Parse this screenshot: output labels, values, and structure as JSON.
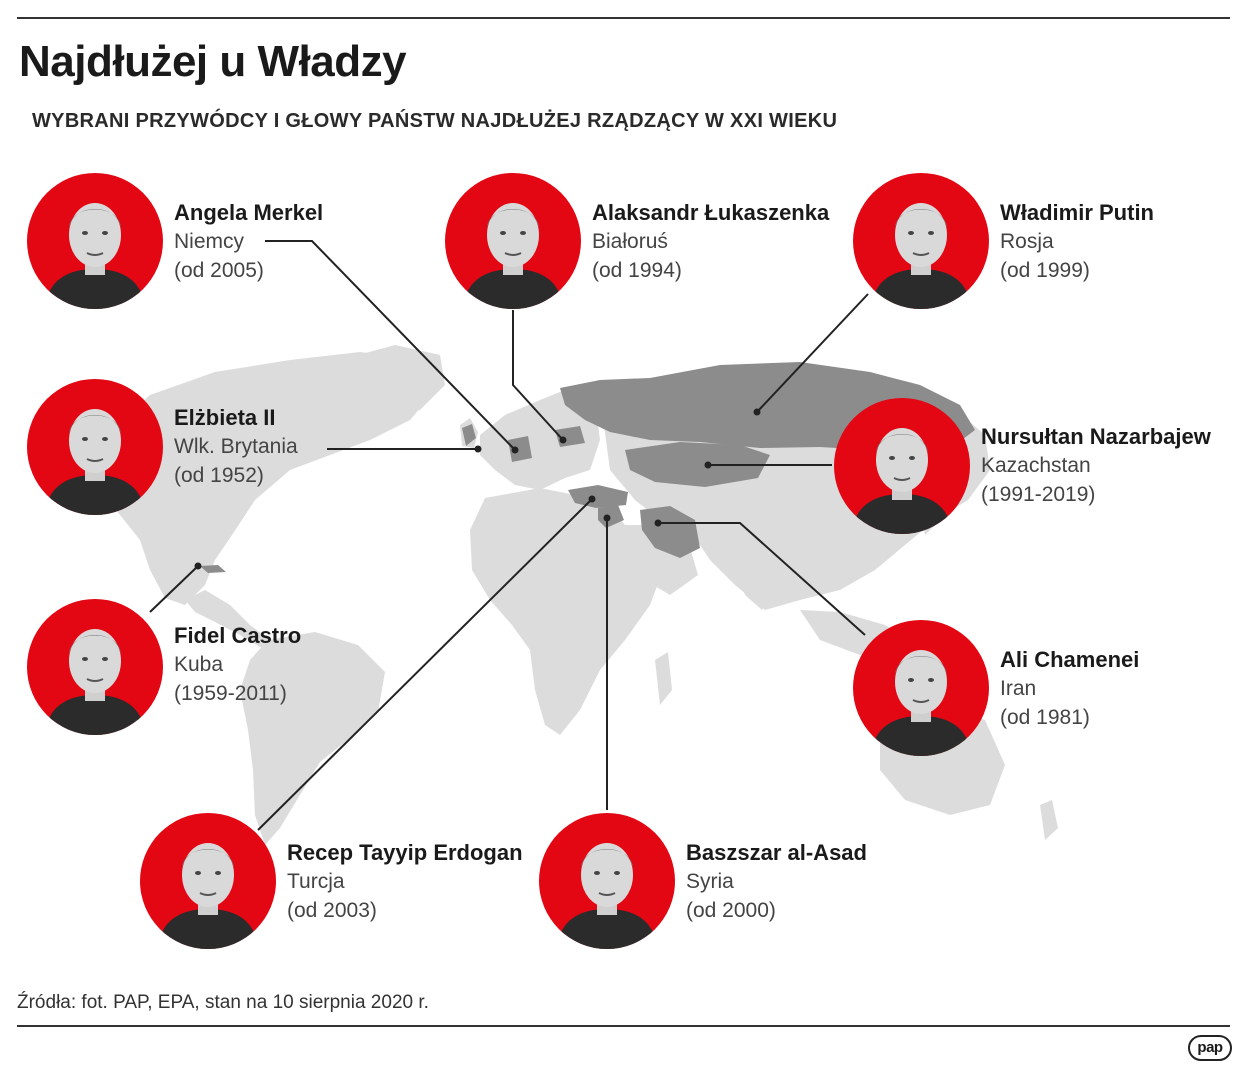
{
  "title": "Najdłużej u Władzy",
  "subtitle": "WYBRANI PRZYWÓDCY I GŁOWY PAŃSTW NAJDŁUŻEJ RZĄDZĄCY W XXI WIEKU",
  "leaders": [
    {
      "name": "Angela Merkel",
      "country": "Niemcy",
      "years": "(od 2005)"
    },
    {
      "name": "Alaksandr Łukaszenka",
      "country": "Białoruś",
      "years": "(od 1994)"
    },
    {
      "name": "Władimir Putin",
      "country": "Rosja",
      "years": "(od 1999)"
    },
    {
      "name": "Elżbieta II",
      "country": "Wlk. Brytania",
      "years": "(od 1952)"
    },
    {
      "name": "Nursułtan Nazarbajew",
      "country": "Kazachstan",
      "years": "(1991-2019)"
    },
    {
      "name": "Fidel Castro",
      "country": "Kuba",
      "years": "(1959-2011)"
    },
    {
      "name": "Ali Chamenei",
      "country": "Iran",
      "years": "(od 1981)"
    },
    {
      "name": "Recep Tayyip Erdogan",
      "country": "Turcja",
      "years": "(od 2003)"
    },
    {
      "name": "Baszszar al-Asad",
      "country": "Syria",
      "years": "(od 2000)"
    }
  ],
  "source": "Źródła: fot. PAP, EPA, stan na 10 sierpnia 2020 r.",
  "logo": "pap",
  "colors": {
    "accent": "#e30613",
    "map": "#dcdcdc",
    "highlight": "#8c8c8c",
    "line": "#222222"
  }
}
